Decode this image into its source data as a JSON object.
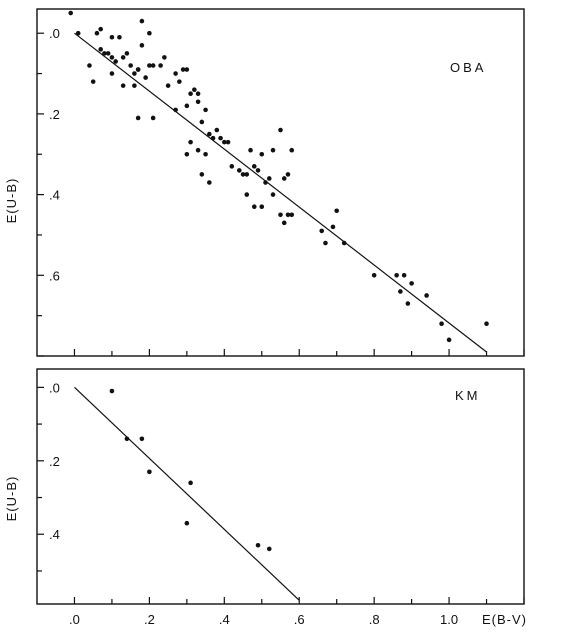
{
  "figure": {
    "xlabel": "E(B-V)",
    "xticks": [
      {
        "value": 0.0,
        "label": ".0"
      },
      {
        "value": 0.2,
        "label": ".2"
      },
      {
        "value": 0.4,
        "label": ".4"
      },
      {
        "value": 0.6,
        "label": ".6"
      },
      {
        "value": 0.8,
        "label": ".8"
      },
      {
        "value": 1.0,
        "label": "1.0"
      }
    ]
  },
  "chart_data": [
    {
      "type": "scatter",
      "panel_label": "OBA",
      "xlabel": "E(B-V)",
      "ylabel": "E(U-B)",
      "xlim": [
        -0.1,
        1.2
      ],
      "ylim": [
        0.8,
        -0.06
      ],
      "y_inverted": true,
      "grid": false,
      "yticks": [
        {
          "value": 0.0,
          "label": ".0"
        },
        {
          "value": 0.2,
          "label": ".2"
        },
        {
          "value": 0.4,
          "label": ".4"
        },
        {
          "value": 0.6,
          "label": ".6"
        }
      ],
      "fit_line": {
        "x": [
          0.0,
          1.1
        ],
        "y": [
          0.0,
          0.79
        ]
      },
      "points": [
        [
          -0.01,
          -0.05
        ],
        [
          0.01,
          0.0
        ],
        [
          0.04,
          0.08
        ],
        [
          0.06,
          0.0
        ],
        [
          0.07,
          -0.01
        ],
        [
          0.07,
          0.04
        ],
        [
          0.08,
          0.05
        ],
        [
          0.09,
          0.05
        ],
        [
          0.1,
          0.01
        ],
        [
          0.1,
          0.06
        ],
        [
          0.11,
          0.07
        ],
        [
          0.12,
          0.01
        ],
        [
          0.13,
          0.06
        ],
        [
          0.14,
          0.05
        ],
        [
          0.15,
          0.08
        ],
        [
          0.16,
          0.1
        ],
        [
          0.17,
          0.09
        ],
        [
          0.18,
          0.03
        ],
        [
          0.19,
          0.11
        ],
        [
          0.2,
          0.08
        ],
        [
          0.05,
          0.12
        ],
        [
          0.1,
          0.1
        ],
        [
          0.13,
          0.13
        ],
        [
          0.16,
          0.13
        ],
        [
          0.17,
          0.09
        ],
        [
          0.18,
          -0.03
        ],
        [
          0.2,
          0.0
        ],
        [
          0.21,
          0.08
        ],
        [
          0.23,
          0.08
        ],
        [
          0.24,
          0.06
        ],
        [
          0.25,
          0.13
        ],
        [
          0.27,
          0.1
        ],
        [
          0.28,
          0.12
        ],
        [
          0.29,
          0.09
        ],
        [
          0.3,
          0.09
        ],
        [
          0.31,
          0.15
        ],
        [
          0.32,
          0.14
        ],
        [
          0.33,
          0.15
        ],
        [
          0.3,
          0.18
        ],
        [
          0.27,
          0.19
        ],
        [
          0.21,
          0.21
        ],
        [
          0.17,
          0.21
        ],
        [
          0.33,
          0.17
        ],
        [
          0.34,
          0.22
        ],
        [
          0.35,
          0.19
        ],
        [
          0.36,
          0.25
        ],
        [
          0.37,
          0.26
        ],
        [
          0.38,
          0.24
        ],
        [
          0.4,
          0.27
        ],
        [
          0.41,
          0.27
        ],
        [
          0.39,
          0.26
        ],
        [
          0.31,
          0.27
        ],
        [
          0.3,
          0.3
        ],
        [
          0.33,
          0.29
        ],
        [
          0.35,
          0.3
        ],
        [
          0.34,
          0.35
        ],
        [
          0.36,
          0.37
        ],
        [
          0.42,
          0.33
        ],
        [
          0.44,
          0.34
        ],
        [
          0.45,
          0.35
        ],
        [
          0.46,
          0.35
        ],
        [
          0.47,
          0.29
        ],
        [
          0.48,
          0.33
        ],
        [
          0.49,
          0.34
        ],
        [
          0.5,
          0.3
        ],
        [
          0.51,
          0.37
        ],
        [
          0.52,
          0.36
        ],
        [
          0.53,
          0.29
        ],
        [
          0.55,
          0.24
        ],
        [
          0.56,
          0.36
        ],
        [
          0.57,
          0.35
        ],
        [
          0.58,
          0.29
        ],
        [
          0.46,
          0.4
        ],
        [
          0.48,
          0.43
        ],
        [
          0.5,
          0.43
        ],
        [
          0.53,
          0.4
        ],
        [
          0.55,
          0.45
        ],
        [
          0.56,
          0.47
        ],
        [
          0.57,
          0.45
        ],
        [
          0.58,
          0.45
        ],
        [
          0.66,
          0.49
        ],
        [
          0.67,
          0.52
        ],
        [
          0.69,
          0.48
        ],
        [
          0.7,
          0.44
        ],
        [
          0.72,
          0.52
        ],
        [
          0.8,
          0.6
        ],
        [
          0.86,
          0.6
        ],
        [
          0.87,
          0.64
        ],
        [
          0.88,
          0.6
        ],
        [
          0.89,
          0.67
        ],
        [
          0.9,
          0.62
        ],
        [
          0.94,
          0.65
        ],
        [
          0.98,
          0.72
        ],
        [
          1.0,
          0.76
        ],
        [
          1.1,
          0.72
        ]
      ]
    },
    {
      "type": "scatter",
      "panel_label": "KM",
      "xlabel": "E(B-V)",
      "ylabel": "E(U-B)",
      "xlim": [
        -0.1,
        1.2
      ],
      "ylim": [
        0.59,
        -0.05
      ],
      "y_inverted": true,
      "grid": false,
      "yticks": [
        {
          "value": 0.0,
          "label": ".0"
        },
        {
          "value": 0.2,
          "label": ".2"
        },
        {
          "value": 0.4,
          "label": ".4"
        }
      ],
      "fit_line": {
        "x": [
          0.0,
          0.6
        ],
        "y": [
          0.0,
          0.58
        ]
      },
      "points": [
        [
          0.1,
          0.01
        ],
        [
          0.14,
          0.14
        ],
        [
          0.18,
          0.14
        ],
        [
          0.2,
          0.23
        ],
        [
          0.31,
          0.26
        ],
        [
          0.3,
          0.37
        ],
        [
          0.49,
          0.43
        ],
        [
          0.52,
          0.44
        ]
      ]
    }
  ]
}
